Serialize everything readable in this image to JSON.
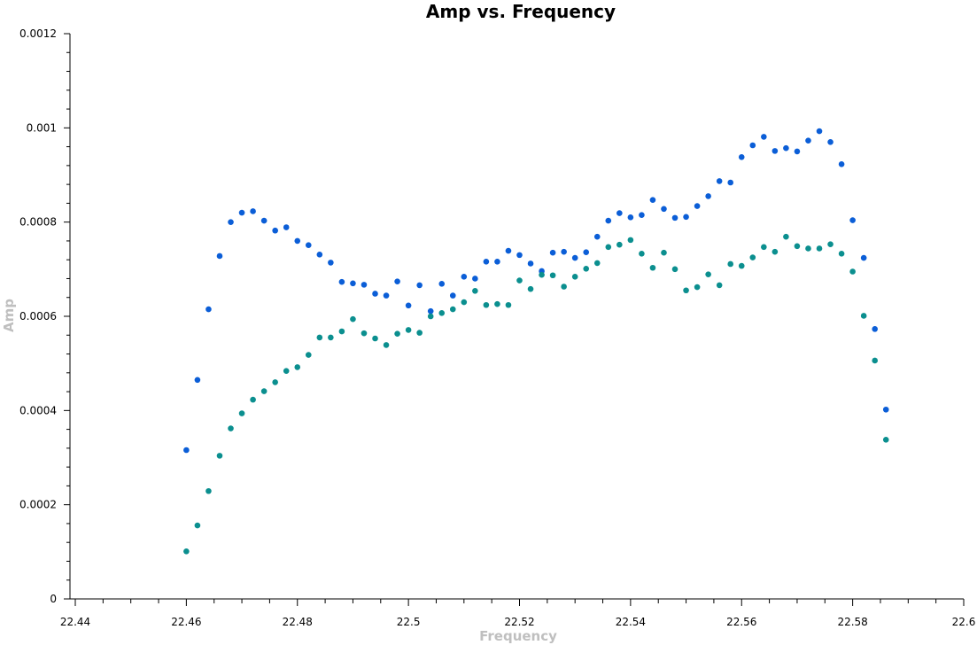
{
  "chart_data": {
    "type": "scatter",
    "title": "Amp vs. Frequency",
    "xlabel": "Frequency",
    "ylabel": "Amp",
    "xlim": [
      22.44,
      22.6
    ],
    "ylim": [
      0,
      0.0012
    ],
    "x_ticks": [
      "22.44",
      "22.46",
      "22.48",
      "22.5",
      "22.52",
      "22.54",
      "22.56",
      "22.58",
      "22.6"
    ],
    "y_ticks": [
      "0",
      "0.0002",
      "0.0004",
      "0.0006",
      "0.0008",
      "0.001",
      "0.0012"
    ],
    "grid": false,
    "legend": "none",
    "x": [
      22.46,
      22.462,
      22.464,
      22.466,
      22.468,
      22.47,
      22.472,
      22.474,
      22.476,
      22.478,
      22.48,
      22.482,
      22.484,
      22.486,
      22.488,
      22.49,
      22.492,
      22.494,
      22.496,
      22.498,
      22.5,
      22.502,
      22.504,
      22.506,
      22.508,
      22.51,
      22.512,
      22.514,
      22.516,
      22.518,
      22.52,
      22.522,
      22.524,
      22.526,
      22.528,
      22.53,
      22.532,
      22.534,
      22.536,
      22.538,
      22.54,
      22.542,
      22.544,
      22.546,
      22.548,
      22.55,
      22.552,
      22.554,
      22.556,
      22.558,
      22.56,
      22.562,
      22.564,
      22.566,
      22.568,
      22.57,
      22.572,
      22.574,
      22.576,
      22.578,
      22.58,
      22.582,
      22.584,
      22.586
    ],
    "series": [
      {
        "color": "#0b5ed7",
        "values": [
          0.000316,
          0.000465,
          0.000615,
          0.000728,
          0.0008,
          0.00082,
          0.000823,
          0.000803,
          0.000782,
          0.000789,
          0.00076,
          0.000751,
          0.000731,
          0.000714,
          0.000673,
          0.00067,
          0.000667,
          0.000648,
          0.000644,
          0.000674,
          0.000623,
          0.000666,
          0.000611,
          0.000669,
          0.000644,
          0.000684,
          0.00068,
          0.000716,
          0.000716,
          0.000739,
          0.00073,
          0.000712,
          0.000696,
          0.000735,
          0.000737,
          0.000724,
          0.000736,
          0.000769,
          0.000803,
          0.000819,
          0.00081,
          0.000815,
          0.000847,
          0.000828,
          0.000809,
          0.000811,
          0.000834,
          0.000855,
          0.000887,
          0.000884,
          0.000938,
          0.000963,
          0.000981,
          0.000951,
          0.000957,
          0.00095,
          0.000973,
          0.000993,
          0.00097,
          0.000923,
          0.000804,
          0.000724,
          0.000573,
          0.000402
        ]
      },
      {
        "color": "#0b8f8f",
        "values": [
          0.000101,
          0.000156,
          0.000229,
          0.000304,
          0.000362,
          0.000394,
          0.000423,
          0.000441,
          0.00046,
          0.000484,
          0.000492,
          0.000518,
          0.000555,
          0.000555,
          0.000568,
          0.000594,
          0.000564,
          0.000553,
          0.000539,
          0.000563,
          0.000571,
          0.000565,
          0.0006,
          0.000607,
          0.000615,
          0.00063,
          0.000654,
          0.000624,
          0.000626,
          0.000624,
          0.000676,
          0.000658,
          0.000688,
          0.000687,
          0.000663,
          0.000684,
          0.000701,
          0.000713,
          0.000747,
          0.000752,
          0.000762,
          0.000733,
          0.000703,
          0.000735,
          0.0007,
          0.000655,
          0.000662,
          0.000689,
          0.000666,
          0.000711,
          0.000707,
          0.000725,
          0.000747,
          0.000737,
          0.000769,
          0.000749,
          0.000744,
          0.000744,
          0.000753,
          0.000733,
          0.000695,
          0.000601,
          0.000506,
          0.000338
        ]
      }
    ]
  }
}
